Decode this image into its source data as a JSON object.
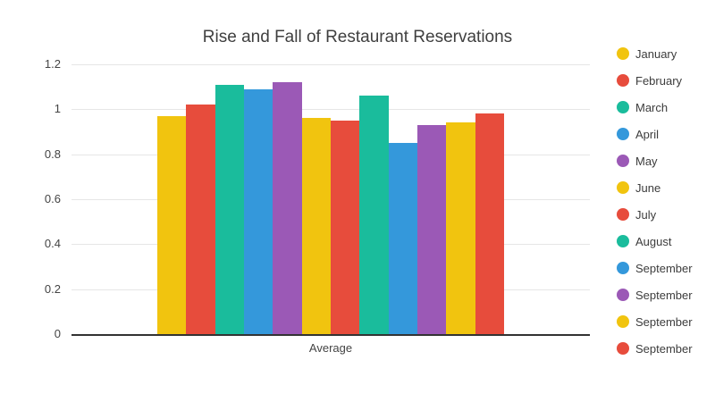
{
  "chart_data": {
    "type": "bar",
    "title": "Rise and Fall of Restaurant Reservations",
    "categories": [
      "Average"
    ],
    "series": [
      {
        "name": "January",
        "values": [
          0.97
        ],
        "color": "#f1c40f"
      },
      {
        "name": "February",
        "values": [
          1.02
        ],
        "color": "#e74c3c"
      },
      {
        "name": "March",
        "values": [
          1.11
        ],
        "color": "#1abc9c"
      },
      {
        "name": "April",
        "values": [
          1.09
        ],
        "color": "#3498db"
      },
      {
        "name": "May",
        "values": [
          1.12
        ],
        "color": "#9b59b6"
      },
      {
        "name": "June",
        "values": [
          0.96
        ],
        "color": "#f1c40f"
      },
      {
        "name": "July",
        "values": [
          0.95
        ],
        "color": "#e74c3c"
      },
      {
        "name": "August",
        "values": [
          1.06
        ],
        "color": "#1abc9c"
      },
      {
        "name": "September",
        "values": [
          0.85
        ],
        "color": "#3498db"
      },
      {
        "name": "September",
        "values": [
          0.93
        ],
        "color": "#9b59b6"
      },
      {
        "name": "September",
        "values": [
          0.94
        ],
        "color": "#f1c40f"
      },
      {
        "name": "September",
        "values": [
          0.98
        ],
        "color": "#e74c3c"
      }
    ],
    "xlabel": "",
    "ylabel": "",
    "ylim": [
      0,
      1.2
    ],
    "yticks": [
      0,
      0.2,
      0.4,
      0.6,
      0.8,
      1,
      1.2
    ],
    "grid": true,
    "legend_position": "right",
    "legend_marker": "circle",
    "palette": [
      "#f1c40f",
      "#e74c3c",
      "#1abc9c",
      "#3498db",
      "#9b59b6"
    ],
    "colors": {
      "background": "#ffffff",
      "axis_line": "#333333",
      "gridline": "#e6e6e6",
      "tick_label": "#444444",
      "legend_text": "#3c3c3c",
      "title_text": "#3f3f3f"
    }
  }
}
